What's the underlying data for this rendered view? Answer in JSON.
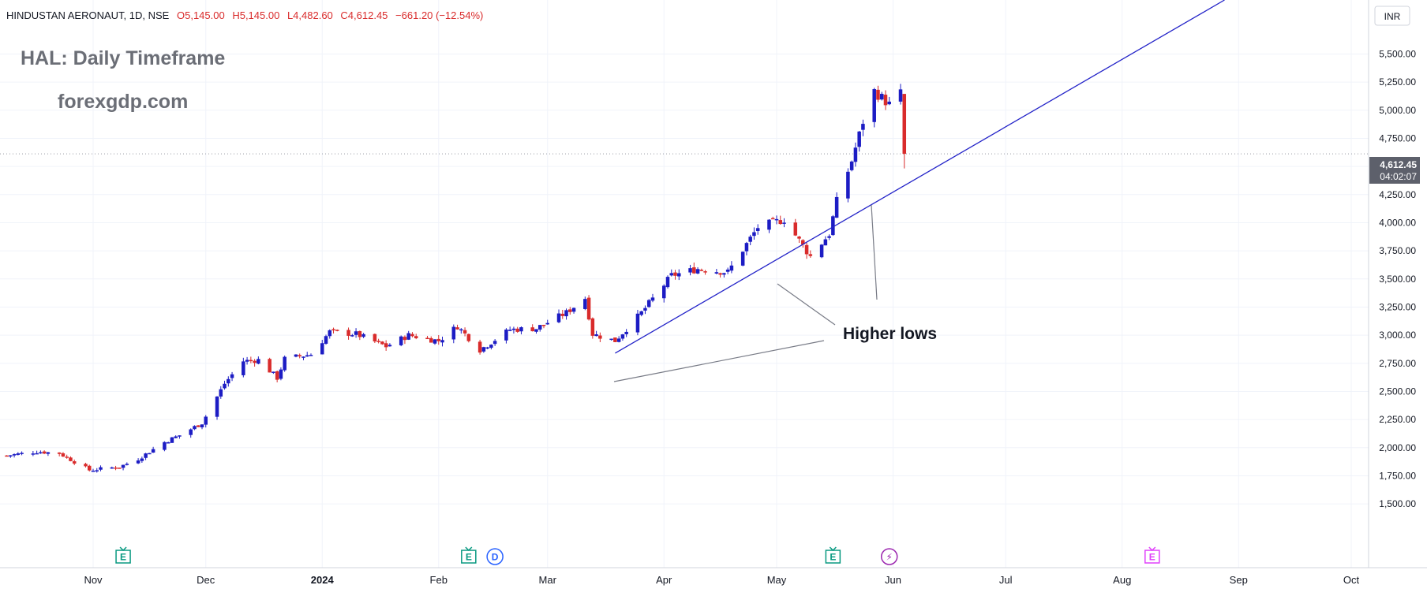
{
  "header": {
    "symbol": "HINDUSTAN AERONAUT, 1D, NSE",
    "open": "O5,145.00",
    "high": "H5,145.00",
    "low": "L4,482.60",
    "close": "C4,612.45",
    "change": "−661.20 (−12.54%)"
  },
  "watermark": {
    "title": "HAL: Daily Timeframe",
    "site": "forexgdp.com"
  },
  "currency": "INR",
  "price_label": {
    "price": "4,612.45",
    "countdown": "04:02:07"
  },
  "annotation": {
    "text": "Higher lows"
  },
  "events": [
    {
      "label": "E",
      "kind": "earnings",
      "color": "#089981"
    },
    {
      "label": "E",
      "kind": "earnings",
      "color": "#089981"
    },
    {
      "label": "D",
      "kind": "dividend",
      "color": "#2962ff"
    },
    {
      "label": "E",
      "kind": "earnings",
      "color": "#089981"
    },
    {
      "label": "⚡",
      "kind": "split",
      "color": "#9c27b0"
    },
    {
      "label": "E",
      "kind": "earnings-upcoming",
      "color": "#e040fb"
    }
  ],
  "colors": {
    "up": "#1c1cc4",
    "down": "#d92b2b",
    "trendline": "#2323c8",
    "grid": "#f0f3fa"
  },
  "chart_data": {
    "type": "candlestick",
    "timeframe": "1D",
    "y_unit": "INR",
    "ylim": [
      1400,
      5750
    ],
    "y_ticks": [
      "1,500.00",
      "1,750.00",
      "2,000.00",
      "2,250.00",
      "2,500.00",
      "2,750.00",
      "3,000.00",
      "3,250.00",
      "3,500.00",
      "3,750.00",
      "4,000.00",
      "4,250.00",
      "4,500.00",
      "4,750.00",
      "5,000.00",
      "5,250.00",
      "5,500.00"
    ],
    "y_tick_values": [
      1500,
      1750,
      2000,
      2250,
      2500,
      2750,
      3000,
      3250,
      3500,
      3750,
      4000,
      4250,
      4500,
      4750,
      5000,
      5250,
      5500
    ],
    "x_ticks": [
      "Nov",
      "Dec",
      "2024",
      "Feb",
      "Mar",
      "Apr",
      "May",
      "Jun",
      "Jul",
      "Aug",
      "Sep",
      "Oct"
    ],
    "trendline": {
      "style": "ascending",
      "points": [
        {
          "date": "2024-03-19",
          "price": 2840
        },
        {
          "date": "2024-05-13",
          "price": 3700
        },
        {
          "date": "2024-06-04",
          "price": 4330
        }
      ]
    },
    "last_price": 4612.45,
    "waypoints": [
      {
        "date": "2023-10-09",
        "close": 1930
      },
      {
        "date": "2023-10-17",
        "close": 1965
      },
      {
        "date": "2023-10-23",
        "close": 1950
      },
      {
        "date": "2023-10-31",
        "close": 1800
      },
      {
        "date": "2023-11-08",
        "close": 1830
      },
      {
        "date": "2023-11-13",
        "close": 1900
      },
      {
        "date": "2023-11-20",
        "close": 2050
      },
      {
        "date": "2023-11-24",
        "close": 2110
      },
      {
        "date": "2023-11-30",
        "close": 2220
      },
      {
        "date": "2023-12-06",
        "close": 2570
      },
      {
        "date": "2023-12-11",
        "close": 2770
      },
      {
        "date": "2023-12-15",
        "close": 2780
      },
      {
        "date": "2023-12-20",
        "close": 2620
      },
      {
        "date": "2023-12-22",
        "close": 2790
      },
      {
        "date": "2023-12-29",
        "close": 2830
      },
      {
        "date": "2024-01-03",
        "close": 3030
      },
      {
        "date": "2024-01-10",
        "close": 3010
      },
      {
        "date": "2024-01-18",
        "close": 2900
      },
      {
        "date": "2024-01-24",
        "close": 3000
      },
      {
        "date": "2024-02-01",
        "close": 2950
      },
      {
        "date": "2024-02-06",
        "close": 3080
      },
      {
        "date": "2024-02-12",
        "close": 2870
      },
      {
        "date": "2024-02-20",
        "close": 3050
      },
      {
        "date": "2024-02-27",
        "close": 3060
      },
      {
        "date": "2024-03-06",
        "close": 3200
      },
      {
        "date": "2024-03-11",
        "close": 3330
      },
      {
        "date": "2024-03-13",
        "close": 3010
      },
      {
        "date": "2024-03-19",
        "close": 2950
      },
      {
        "date": "2024-03-26",
        "close": 3200
      },
      {
        "date": "2024-04-03",
        "close": 3530
      },
      {
        "date": "2024-04-10",
        "close": 3590
      },
      {
        "date": "2024-04-18",
        "close": 3560
      },
      {
        "date": "2024-04-26",
        "close": 3960
      },
      {
        "date": "2024-05-03",
        "close": 4030
      },
      {
        "date": "2024-05-10",
        "close": 3700
      },
      {
        "date": "2024-05-15",
        "close": 3900
      },
      {
        "date": "2024-05-17",
        "close": 4190
      },
      {
        "date": "2024-05-21",
        "close": 4550
      },
      {
        "date": "2024-05-24",
        "close": 4900
      },
      {
        "date": "2024-05-27",
        "close": 5170
      },
      {
        "date": "2024-05-31",
        "close": 5050
      },
      {
        "date": "2024-06-03",
        "close": 5150
      },
      {
        "date": "2024-06-04",
        "close": 4612
      }
    ]
  }
}
